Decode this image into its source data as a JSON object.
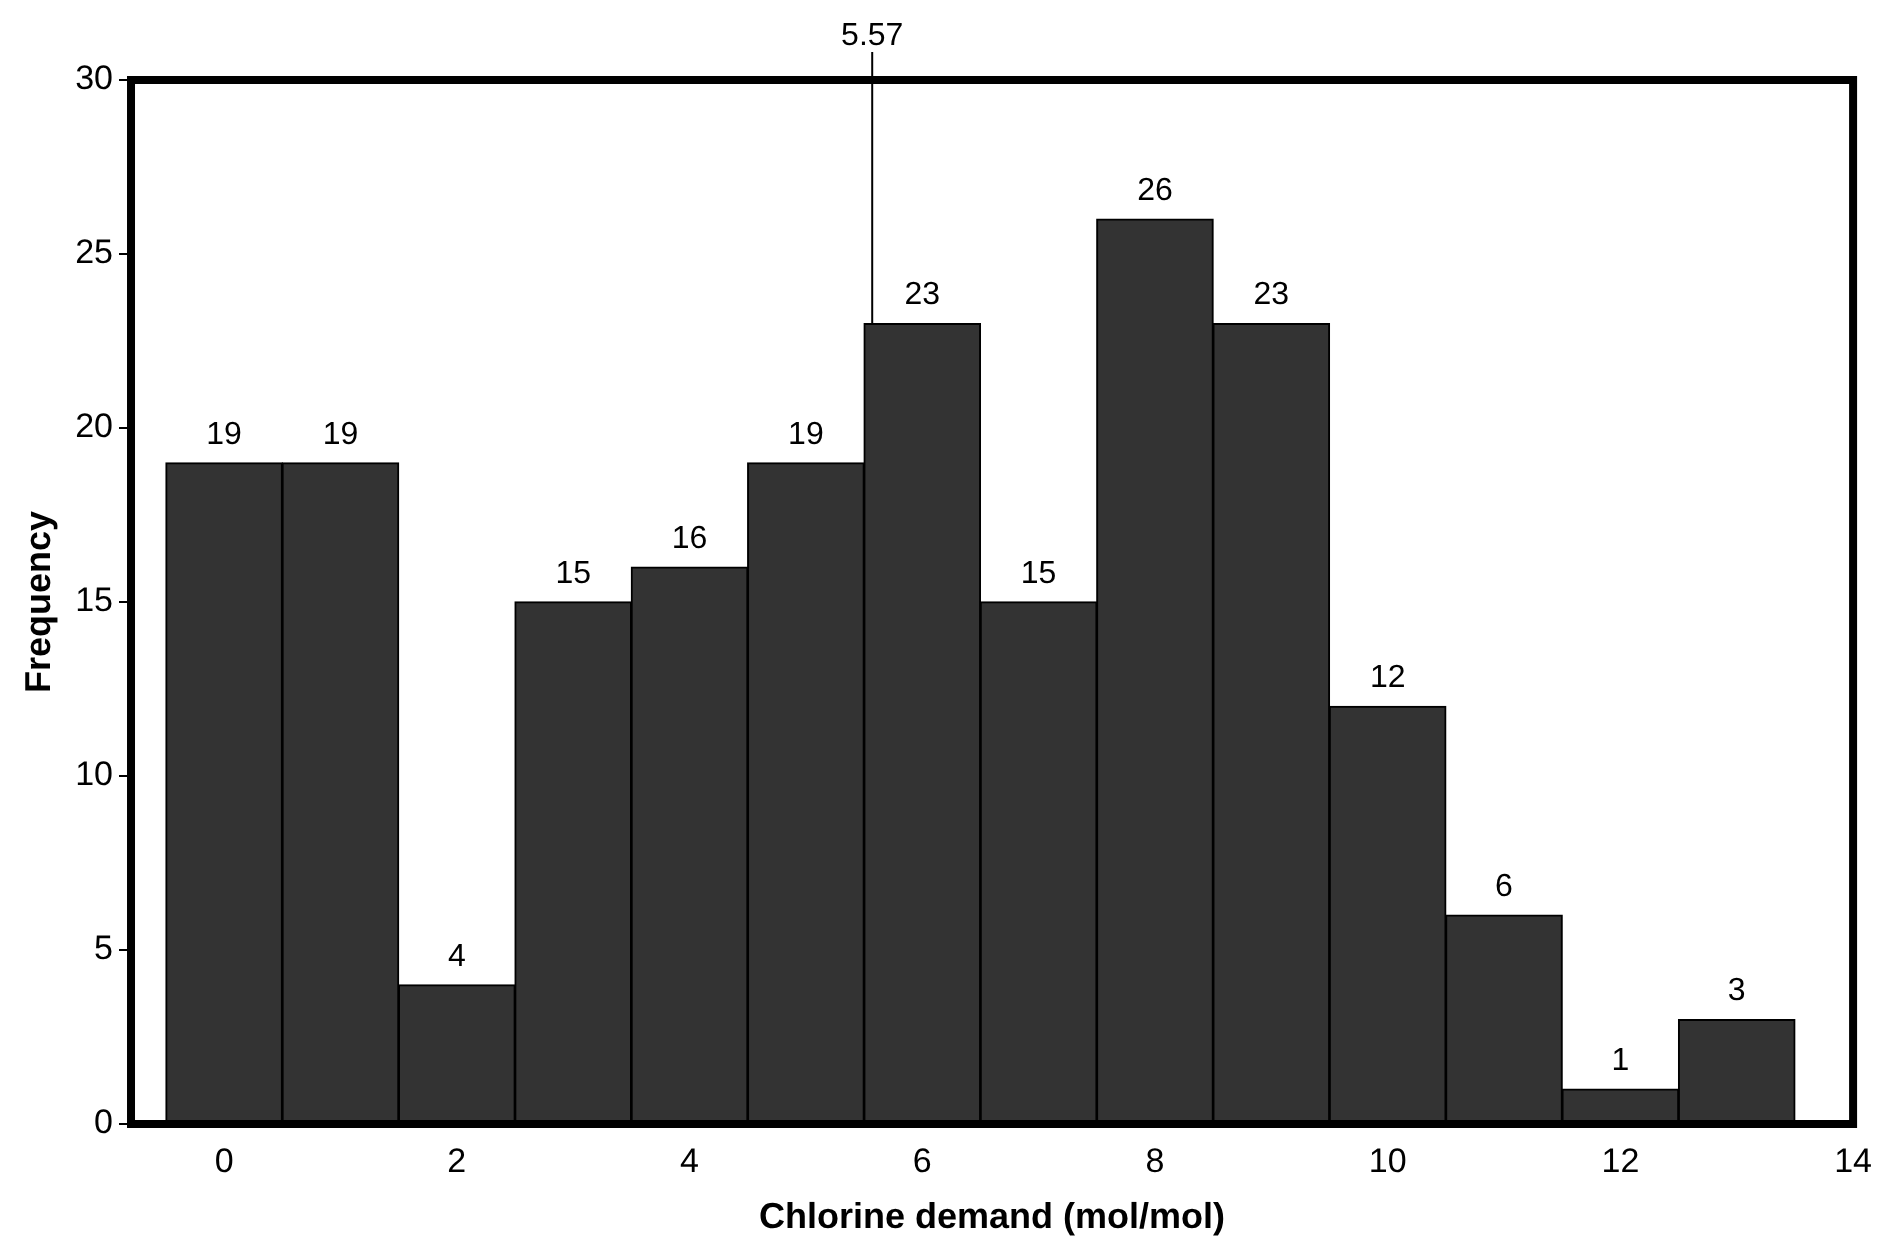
{
  "chart_data": {
    "type": "histogram",
    "xlabel": "Chlorine demand (mol/mol)",
    "ylabel": "Frequency",
    "bins": [
      -0.5,
      0.5,
      1.5,
      2.5,
      3.5,
      4.5,
      5.5,
      6.5,
      7.5,
      8.5,
      9.5,
      10.5,
      11.5,
      12.5,
      13.5
    ],
    "values": [
      19,
      19,
      4,
      15,
      16,
      19,
      23,
      15,
      26,
      23,
      12,
      6,
      1,
      3
    ],
    "color": "#333333",
    "xlim": [
      -0.8,
      14
    ],
    "xticks": [
      0,
      2,
      4,
      6,
      8,
      10,
      12,
      14
    ],
    "ylim": [
      0,
      30
    ],
    "yticks": [
      0,
      5,
      10,
      15,
      20,
      25,
      30
    ],
    "ref_lines": [
      {
        "axis": "x",
        "value": 5.57,
        "label": "5.57",
        "color": "#000000"
      }
    ],
    "data_labels": true,
    "grid": false,
    "legend": false
  }
}
